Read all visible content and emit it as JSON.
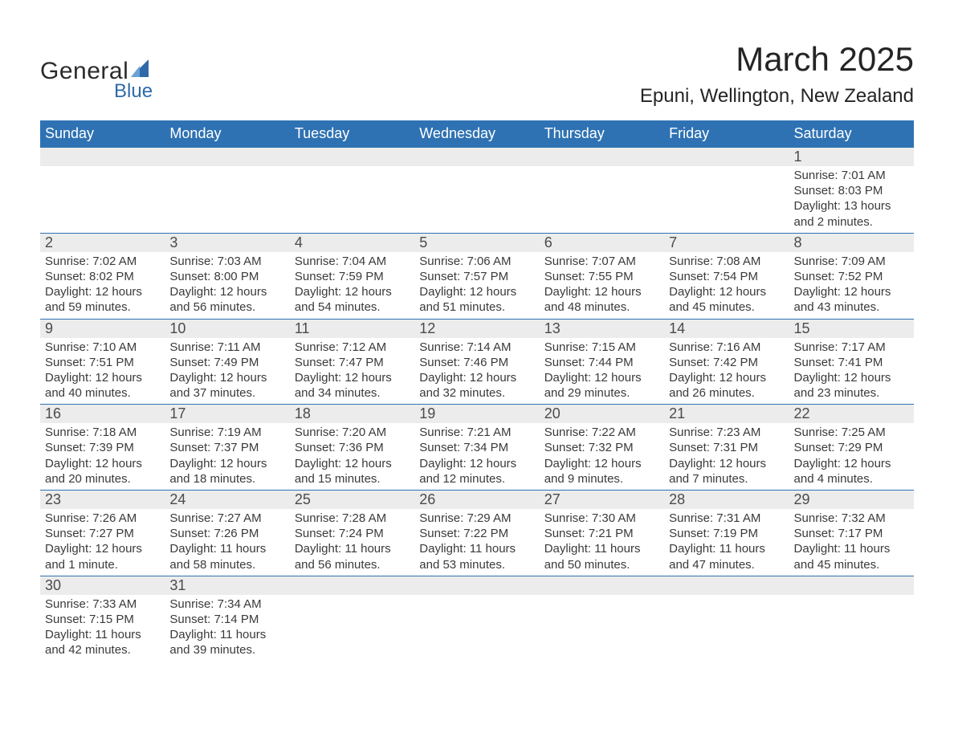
{
  "logo": {
    "top": "General",
    "bottom": "Blue",
    "sail_color": "#2f6aa8"
  },
  "title": "March 2025",
  "location": "Epuni, Wellington, New Zealand",
  "colors": {
    "header_bg": "#2f72b3",
    "header_text": "#ffffff",
    "daynum_bg": "#ececec",
    "border": "#2f72b3",
    "body_text": "#3a3a3a",
    "background": "#ffffff"
  },
  "typography": {
    "title_fontsize": 42,
    "location_fontsize": 24,
    "header_fontsize": 18,
    "daynum_fontsize": 18,
    "detail_fontsize": 15,
    "family": "Arial"
  },
  "layout": {
    "columns": 7,
    "col_width_pct": 14.28
  },
  "daysOfWeek": [
    "Sunday",
    "Monday",
    "Tuesday",
    "Wednesday",
    "Thursday",
    "Friday",
    "Saturday"
  ],
  "labels": {
    "sunrise": "Sunrise:",
    "sunset": "Sunset:",
    "daylight": "Daylight:"
  },
  "weeks": [
    [
      null,
      null,
      null,
      null,
      null,
      null,
      {
        "n": "1",
        "sr": "7:01 AM",
        "ss": "8:03 PM",
        "dl": "13 hours and 2 minutes."
      }
    ],
    [
      {
        "n": "2",
        "sr": "7:02 AM",
        "ss": "8:02 PM",
        "dl": "12 hours and 59 minutes."
      },
      {
        "n": "3",
        "sr": "7:03 AM",
        "ss": "8:00 PM",
        "dl": "12 hours and 56 minutes."
      },
      {
        "n": "4",
        "sr": "7:04 AM",
        "ss": "7:59 PM",
        "dl": "12 hours and 54 minutes."
      },
      {
        "n": "5",
        "sr": "7:06 AM",
        "ss": "7:57 PM",
        "dl": "12 hours and 51 minutes."
      },
      {
        "n": "6",
        "sr": "7:07 AM",
        "ss": "7:55 PM",
        "dl": "12 hours and 48 minutes."
      },
      {
        "n": "7",
        "sr": "7:08 AM",
        "ss": "7:54 PM",
        "dl": "12 hours and 45 minutes."
      },
      {
        "n": "8",
        "sr": "7:09 AM",
        "ss": "7:52 PM",
        "dl": "12 hours and 43 minutes."
      }
    ],
    [
      {
        "n": "9",
        "sr": "7:10 AM",
        "ss": "7:51 PM",
        "dl": "12 hours and 40 minutes."
      },
      {
        "n": "10",
        "sr": "7:11 AM",
        "ss": "7:49 PM",
        "dl": "12 hours and 37 minutes."
      },
      {
        "n": "11",
        "sr": "7:12 AM",
        "ss": "7:47 PM",
        "dl": "12 hours and 34 minutes."
      },
      {
        "n": "12",
        "sr": "7:14 AM",
        "ss": "7:46 PM",
        "dl": "12 hours and 32 minutes."
      },
      {
        "n": "13",
        "sr": "7:15 AM",
        "ss": "7:44 PM",
        "dl": "12 hours and 29 minutes."
      },
      {
        "n": "14",
        "sr": "7:16 AM",
        "ss": "7:42 PM",
        "dl": "12 hours and 26 minutes."
      },
      {
        "n": "15",
        "sr": "7:17 AM",
        "ss": "7:41 PM",
        "dl": "12 hours and 23 minutes."
      }
    ],
    [
      {
        "n": "16",
        "sr": "7:18 AM",
        "ss": "7:39 PM",
        "dl": "12 hours and 20 minutes."
      },
      {
        "n": "17",
        "sr": "7:19 AM",
        "ss": "7:37 PM",
        "dl": "12 hours and 18 minutes."
      },
      {
        "n": "18",
        "sr": "7:20 AM",
        "ss": "7:36 PM",
        "dl": "12 hours and 15 minutes."
      },
      {
        "n": "19",
        "sr": "7:21 AM",
        "ss": "7:34 PM",
        "dl": "12 hours and 12 minutes."
      },
      {
        "n": "20",
        "sr": "7:22 AM",
        "ss": "7:32 PM",
        "dl": "12 hours and 9 minutes."
      },
      {
        "n": "21",
        "sr": "7:23 AM",
        "ss": "7:31 PM",
        "dl": "12 hours and 7 minutes."
      },
      {
        "n": "22",
        "sr": "7:25 AM",
        "ss": "7:29 PM",
        "dl": "12 hours and 4 minutes."
      }
    ],
    [
      {
        "n": "23",
        "sr": "7:26 AM",
        "ss": "7:27 PM",
        "dl": "12 hours and 1 minute."
      },
      {
        "n": "24",
        "sr": "7:27 AM",
        "ss": "7:26 PM",
        "dl": "11 hours and 58 minutes."
      },
      {
        "n": "25",
        "sr": "7:28 AM",
        "ss": "7:24 PM",
        "dl": "11 hours and 56 minutes."
      },
      {
        "n": "26",
        "sr": "7:29 AM",
        "ss": "7:22 PM",
        "dl": "11 hours and 53 minutes."
      },
      {
        "n": "27",
        "sr": "7:30 AM",
        "ss": "7:21 PM",
        "dl": "11 hours and 50 minutes."
      },
      {
        "n": "28",
        "sr": "7:31 AM",
        "ss": "7:19 PM",
        "dl": "11 hours and 47 minutes."
      },
      {
        "n": "29",
        "sr": "7:32 AM",
        "ss": "7:17 PM",
        "dl": "11 hours and 45 minutes."
      }
    ],
    [
      {
        "n": "30",
        "sr": "7:33 AM",
        "ss": "7:15 PM",
        "dl": "11 hours and 42 minutes."
      },
      {
        "n": "31",
        "sr": "7:34 AM",
        "ss": "7:14 PM",
        "dl": "11 hours and 39 minutes."
      },
      null,
      null,
      null,
      null,
      null
    ]
  ]
}
